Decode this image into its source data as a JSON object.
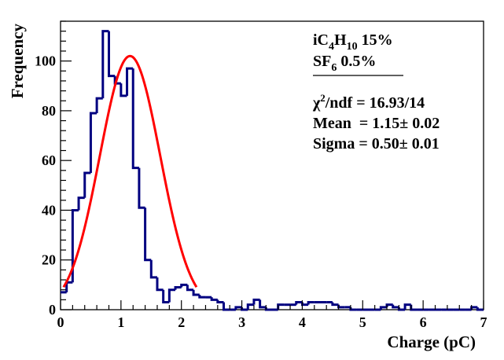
{
  "chart_data": {
    "type": "histogram",
    "xlabel": "Charge (pC)",
    "ylabel": "Frequency",
    "xlim": [
      0,
      7
    ],
    "ylim": [
      0,
      116
    ],
    "x_ticks": [
      0,
      1,
      2,
      3,
      4,
      5,
      6,
      7
    ],
    "y_ticks": [
      0,
      20,
      40,
      60,
      80,
      100
    ],
    "grid": false,
    "bin_width": 0.1,
    "bin_start": 0,
    "hist_color": "#000080",
    "fit_color": "#ff0000",
    "counts": [
      7,
      11,
      40,
      45,
      55,
      79,
      85,
      112,
      94,
      91,
      86,
      97,
      57,
      41,
      20,
      13,
      8,
      3,
      8,
      9,
      10,
      8,
      6,
      5,
      5,
      4,
      3,
      0,
      0,
      1,
      0,
      2,
      4,
      1,
      0,
      0,
      2,
      2,
      2,
      3,
      2,
      3,
      3,
      3,
      3,
      2,
      1,
      1,
      0,
      0,
      0,
      0,
      0,
      1,
      2,
      1,
      0,
      2,
      0,
      0,
      0,
      0,
      0,
      0,
      0,
      0,
      0,
      0,
      1,
      0
    ],
    "fit": {
      "function": "gaussian",
      "amplitude": 102,
      "mean": 1.15,
      "sigma": 0.5,
      "x_range": [
        0.05,
        2.25
      ]
    },
    "legend": {
      "line1_prefix": "iC",
      "line1_sub1": "4",
      "line1_mid": "H",
      "line1_sub2": "10",
      "line1_suffix": " 15%",
      "line2_prefix": "SF",
      "line2_sub": "6",
      "line2_suffix": " 0.5%",
      "chi_prefix": "χ",
      "chi_sup": "2",
      "chi_suffix": "/ndf = 16.93/14",
      "mean_text": "Mean  = 1.15± 0.02",
      "sigma_text": "Sigma = 0.50± 0.01"
    }
  }
}
